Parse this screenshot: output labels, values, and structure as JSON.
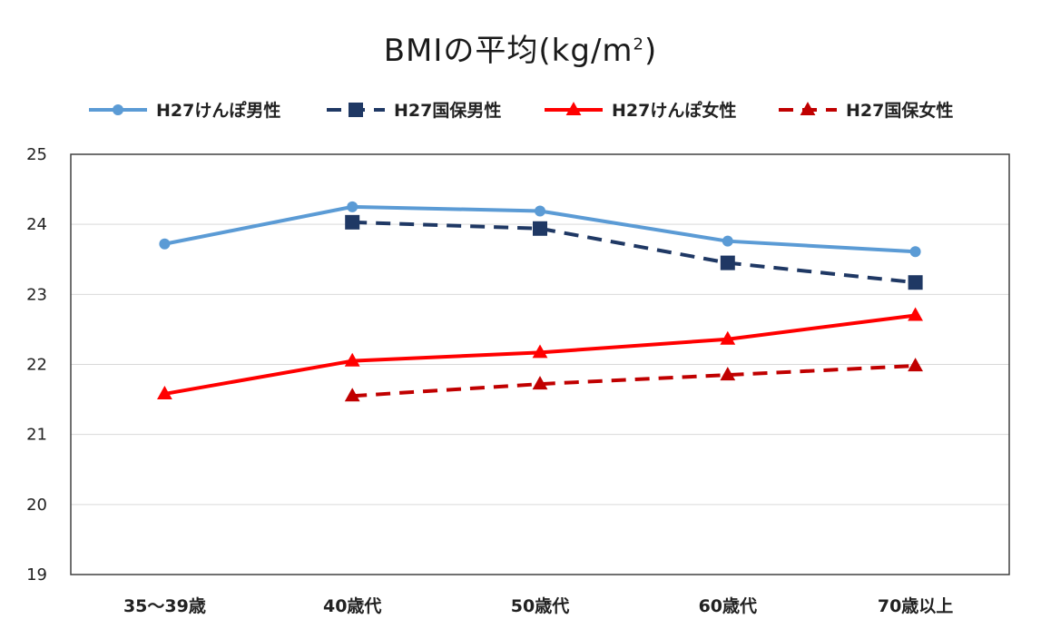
{
  "chart_data": {
    "type": "line",
    "title": "BMIの平均(kg/m",
    "title_sup": "2",
    "title_close": ")",
    "categories": [
      "35～39歳",
      "40歳代",
      "50歳代",
      "60歳代",
      "70歳以上"
    ],
    "ylim": [
      19,
      25
    ],
    "yticks": [
      "19",
      "20",
      "21",
      "22",
      "23",
      "24",
      "25"
    ],
    "grid": true,
    "legend_position": "top",
    "series": [
      {
        "name": "H27けんぽ男性",
        "values": [
          23.72,
          24.25,
          24.19,
          23.76,
          23.61
        ],
        "color": "#5b9bd5",
        "dash": "solid",
        "marker": "circle"
      },
      {
        "name": "H27国保男性",
        "values": [
          null,
          24.03,
          23.94,
          23.45,
          23.17
        ],
        "color": "#1f3864",
        "dash": "dashed",
        "marker": "square"
      },
      {
        "name": "H27けんぽ女性",
        "values": [
          21.58,
          22.05,
          22.17,
          22.36,
          22.7
        ],
        "color": "#ff0000",
        "dash": "solid",
        "marker": "triangle"
      },
      {
        "name": "H27国保女性",
        "values": [
          null,
          21.55,
          21.72,
          21.85,
          21.98
        ],
        "color": "#c00000",
        "dash": "dashed",
        "marker": "triangle"
      }
    ]
  }
}
